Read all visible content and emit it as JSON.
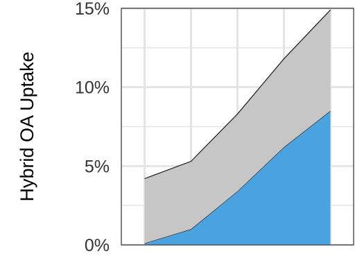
{
  "chart_data": {
    "type": "area",
    "stacked": true,
    "title": "",
    "xlabel": "",
    "ylabel": "Hybrid OA Uptake",
    "x": [
      1,
      2,
      3,
      4,
      5
    ],
    "xlim": [
      0.5,
      5.5
    ],
    "ylim": [
      0,
      0.15
    ],
    "y_ticks": [
      {
        "value": 0,
        "label": "0%"
      },
      {
        "value": 0.05,
        "label": "5%"
      },
      {
        "value": 0.1,
        "label": "10%"
      },
      {
        "value": 0.15,
        "label": "15%"
      }
    ],
    "x_ticks_shown": false,
    "grid": true,
    "legend": "none",
    "series": [
      {
        "values": [
          0.001,
          0.01,
          0.034,
          0.062,
          0.085
        ],
        "color": "#4aa3e0"
      },
      {
        "values": [
          0.041,
          0.043,
          0.049,
          0.056,
          0.064
        ],
        "color": "#c6c6c6"
      }
    ],
    "colors": {
      "grid": "#e4e4e4",
      "panel_border": "#555555",
      "outline": "#1a1a1a"
    }
  }
}
